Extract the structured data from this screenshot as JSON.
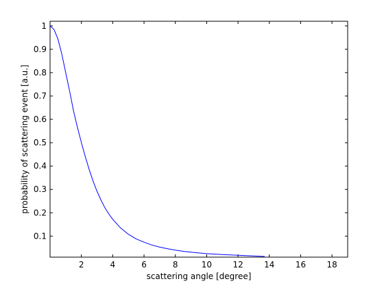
{
  "chart_data": {
    "type": "line",
    "title": "",
    "xlabel": "scattering angle [degree]",
    "ylabel": "probability of scattering event [a.u.]",
    "xlim": [
      0,
      19
    ],
    "ylim": [
      0.01,
      1.02
    ],
    "x_ticks": [
      2,
      4,
      6,
      8,
      10,
      12,
      14,
      16,
      18
    ],
    "y_ticks": [
      0.1,
      0.2,
      0.3,
      0.4,
      0.5,
      0.6,
      0.7,
      0.8,
      0.9,
      1
    ],
    "grid": false,
    "legend": "none",
    "series": [
      {
        "color": "#0000ff",
        "x": [
          0,
          0.25,
          0.5,
          0.75,
          1,
          1.25,
          1.5,
          1.75,
          2,
          2.25,
          2.5,
          2.75,
          3,
          3.25,
          3.5,
          3.75,
          4,
          4.5,
          5,
          5.5,
          6,
          6.5,
          7,
          7.5,
          8,
          8.5,
          9,
          9.5,
          10,
          11,
          12,
          13,
          13.7
        ],
        "y": [
          1.0,
          0.985,
          0.945,
          0.88,
          0.8,
          0.72,
          0.635,
          0.565,
          0.5,
          0.44,
          0.385,
          0.335,
          0.292,
          0.255,
          0.222,
          0.195,
          0.172,
          0.135,
          0.108,
          0.088,
          0.074,
          0.062,
          0.053,
          0.046,
          0.04,
          0.035,
          0.031,
          0.028,
          0.025,
          0.021,
          0.018,
          0.015,
          0.013
        ]
      }
    ]
  }
}
